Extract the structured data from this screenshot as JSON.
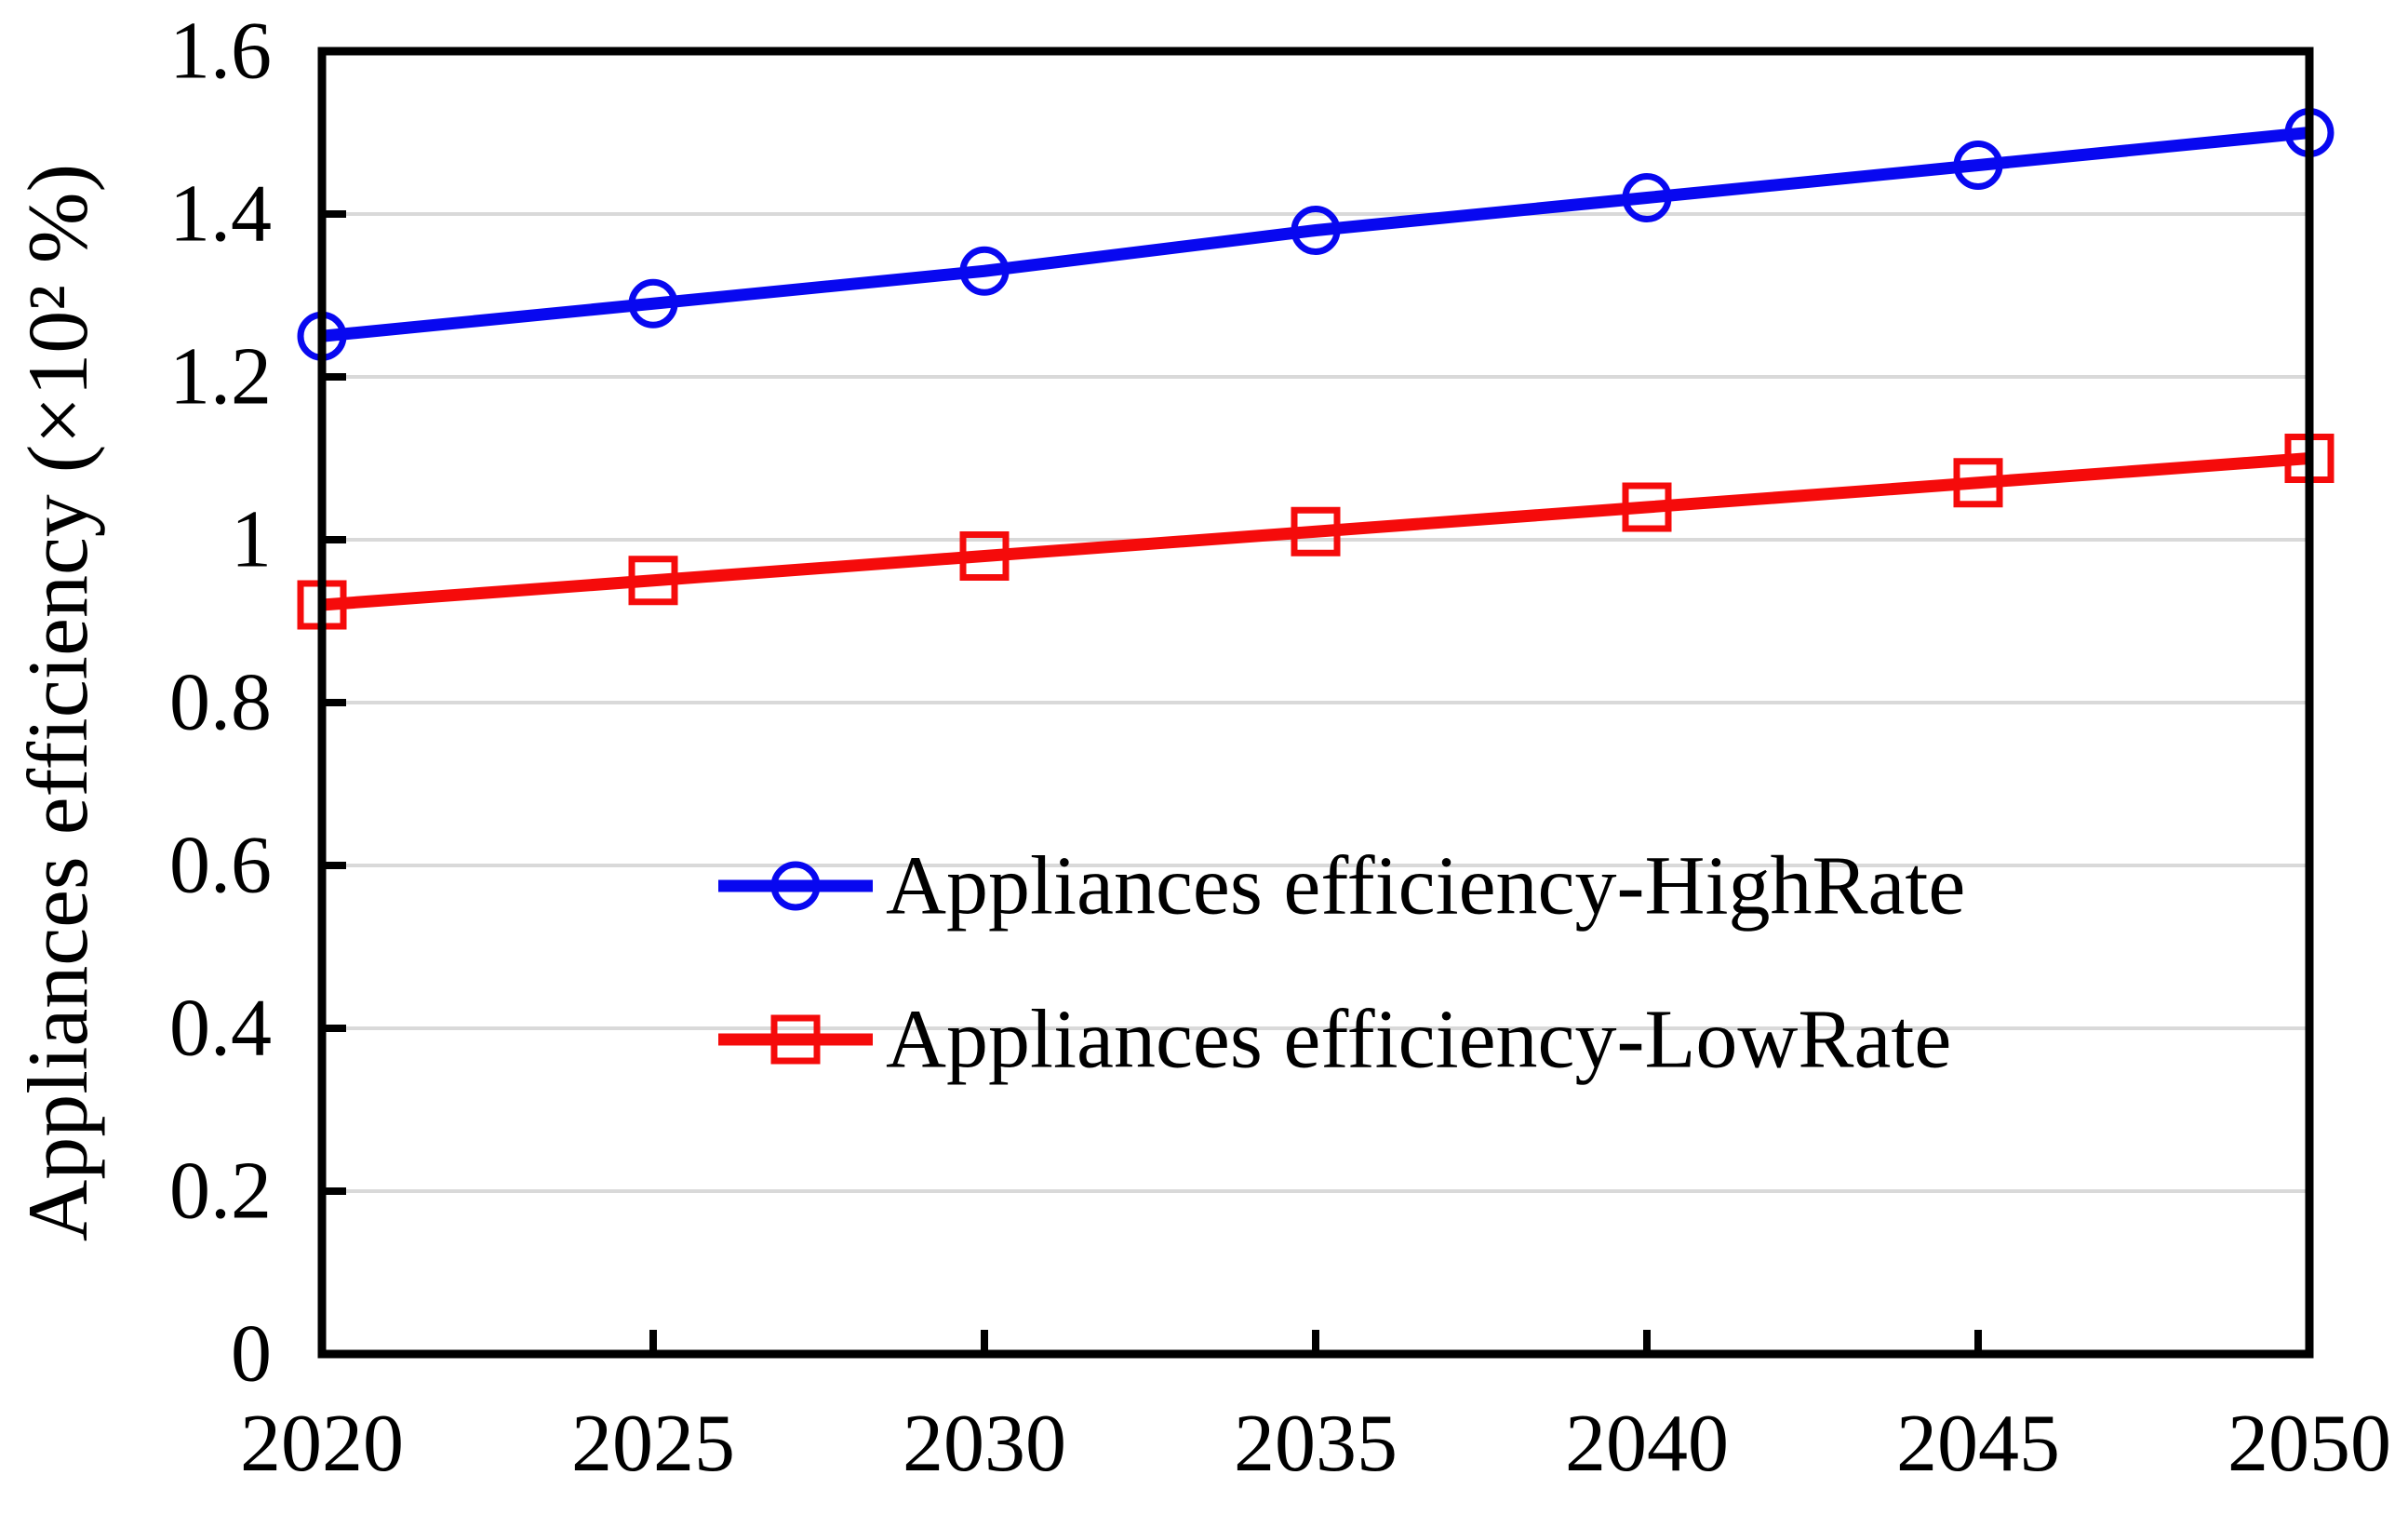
{
  "figure": {
    "background": "#ffffff"
  },
  "chart_data": {
    "type": "line",
    "title": "",
    "xlabel": "",
    "ylabel": "Appliances efficiency (×10² %)",
    "x": [
      2020,
      2025,
      2030,
      2035,
      2040,
      2045,
      2050
    ],
    "x_tick_labels": [
      "2020",
      "2025",
      "2030",
      "2035",
      "2040",
      "2045",
      "2050"
    ],
    "xlim": [
      2020,
      2050
    ],
    "ylim": [
      0,
      1.6
    ],
    "y_ticks": [
      0,
      0.2,
      0.4,
      0.6,
      0.8,
      1,
      1.2,
      1.4,
      1.6
    ],
    "y_tick_labels": [
      "0",
      "0.2",
      "0.4",
      "0.6",
      "0.8",
      "1",
      "1.2",
      "1.4",
      "1.6"
    ],
    "grid": "horizontal",
    "grid_color": "#d9d9d9",
    "axis_color": "#000000",
    "legend_position": "inside-center",
    "series": [
      {
        "name": "Appliances efficiency-HighRate",
        "color": "#0808f0",
        "marker": "circle",
        "values": [
          1.25,
          1.29,
          1.33,
          1.38,
          1.42,
          1.46,
          1.5
        ]
      },
      {
        "name": "Appliances efficiency-LowRate",
        "color": "#f50b0b",
        "marker": "square",
        "values": [
          0.92,
          0.95,
          0.98,
          1.01,
          1.04,
          1.07,
          1.1
        ]
      }
    ]
  }
}
